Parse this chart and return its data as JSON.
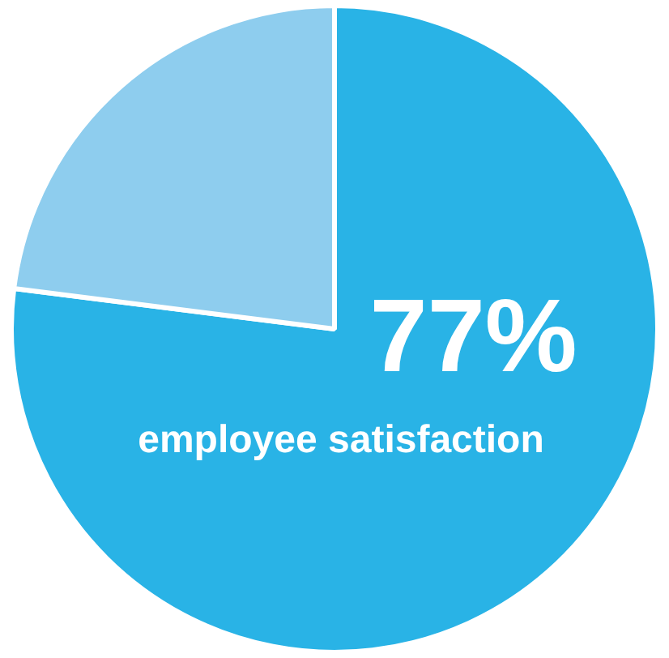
{
  "chart_data": {
    "type": "pie",
    "categories": [
      "employee satisfaction",
      null
    ],
    "values": [
      77,
      23
    ],
    "colors": [
      "#29b3e6",
      "#8ecdee"
    ],
    "value_labels": [
      "77%",
      null
    ],
    "legend": false
  }
}
